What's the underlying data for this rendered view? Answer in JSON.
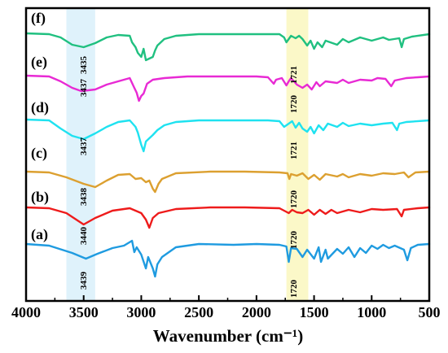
{
  "chart_data": {
    "type": "line",
    "title": "",
    "xlabel": "Wavenumber (cm⁻¹)",
    "ylabel": "",
    "xlim": [
      4000,
      500
    ],
    "x_reversed": true,
    "xticks": [
      4000,
      3500,
      3000,
      2500,
      2000,
      1500,
      1000,
      500
    ],
    "grid": false,
    "legend": "none",
    "highlight_bands": [
      {
        "from": 3650,
        "to": 3400,
        "color": "#dff2fb"
      },
      {
        "from": 1740,
        "to": 1550,
        "color": "#fbf8c8"
      }
    ],
    "series": [
      {
        "name": "(a)",
        "color": "#1f9be0",
        "offset": 0,
        "points": [
          [
            4000,
            300
          ],
          [
            3800,
            302
          ],
          [
            3600,
            311
          ],
          [
            3480,
            318
          ],
          [
            3380,
            312
          ],
          [
            3250,
            305
          ],
          [
            3150,
            302
          ],
          [
            3080,
            296
          ],
          [
            3060,
            310
          ],
          [
            3040,
            304
          ],
          [
            3000,
            313
          ],
          [
            2960,
            330
          ],
          [
            2940,
            316
          ],
          [
            2900,
            330
          ],
          [
            2880,
            340
          ],
          [
            2860,
            325
          ],
          [
            2820,
            316
          ],
          [
            2700,
            304
          ],
          [
            2500,
            300
          ],
          [
            2200,
            301
          ],
          [
            2000,
            300
          ],
          [
            1800,
            301
          ],
          [
            1740,
            303
          ],
          [
            1720,
            322
          ],
          [
            1700,
            305
          ],
          [
            1650,
            306
          ],
          [
            1600,
            316
          ],
          [
            1560,
            307
          ],
          [
            1500,
            318
          ],
          [
            1460,
            304
          ],
          [
            1440,
            322
          ],
          [
            1400,
            307
          ],
          [
            1380,
            318
          ],
          [
            1300,
            306
          ],
          [
            1250,
            312
          ],
          [
            1200,
            304
          ],
          [
            1150,
            316
          ],
          [
            1100,
            305
          ],
          [
            1050,
            311
          ],
          [
            1000,
            302
          ],
          [
            950,
            306
          ],
          [
            900,
            301
          ],
          [
            850,
            305
          ],
          [
            800,
            302
          ],
          [
            720,
            307
          ],
          [
            690,
            320
          ],
          [
            660,
            305
          ],
          [
            600,
            301
          ],
          [
            500,
            300
          ]
        ]
      },
      {
        "name": "(b)",
        "color": "#ee1b1b",
        "offset": 0,
        "points": [
          [
            4000,
            255
          ],
          [
            3800,
            256
          ],
          [
            3650,
            262
          ],
          [
            3500,
            276
          ],
          [
            3400,
            268
          ],
          [
            3250,
            259
          ],
          [
            3100,
            256
          ],
          [
            3000,
            262
          ],
          [
            2960,
            270
          ],
          [
            2930,
            280
          ],
          [
            2900,
            268
          ],
          [
            2850,
            262
          ],
          [
            2700,
            257
          ],
          [
            2400,
            255
          ],
          [
            2100,
            255
          ],
          [
            1800,
            256
          ],
          [
            1720,
            262
          ],
          [
            1690,
            258
          ],
          [
            1650,
            261
          ],
          [
            1600,
            262
          ],
          [
            1550,
            258
          ],
          [
            1500,
            264
          ],
          [
            1450,
            258
          ],
          [
            1400,
            263
          ],
          [
            1350,
            258
          ],
          [
            1300,
            262
          ],
          [
            1200,
            258
          ],
          [
            1100,
            261
          ],
          [
            1000,
            257
          ],
          [
            900,
            258
          ],
          [
            780,
            257
          ],
          [
            740,
            266
          ],
          [
            720,
            258
          ],
          [
            600,
            256
          ],
          [
            500,
            255
          ]
        ]
      },
      {
        "name": "(c)",
        "color": "#dca030",
        "offset": 0,
        "points": [
          [
            4000,
            211
          ],
          [
            3800,
            212
          ],
          [
            3650,
            218
          ],
          [
            3500,
            226
          ],
          [
            3400,
            230
          ],
          [
            3300,
            222
          ],
          [
            3200,
            215
          ],
          [
            3100,
            214
          ],
          [
            3050,
            220
          ],
          [
            3000,
            219
          ],
          [
            2960,
            224
          ],
          [
            2930,
            222
          ],
          [
            2900,
            232
          ],
          [
            2880,
            236
          ],
          [
            2850,
            226
          ],
          [
            2820,
            220
          ],
          [
            2700,
            213
          ],
          [
            2400,
            211
          ],
          [
            2100,
            211
          ],
          [
            1800,
            212
          ],
          [
            1730,
            213
          ],
          [
            1715,
            220
          ],
          [
            1700,
            214
          ],
          [
            1650,
            216
          ],
          [
            1600,
            213
          ],
          [
            1550,
            220
          ],
          [
            1500,
            215
          ],
          [
            1450,
            221
          ],
          [
            1400,
            214
          ],
          [
            1300,
            217
          ],
          [
            1250,
            214
          ],
          [
            1200,
            218
          ],
          [
            1100,
            214
          ],
          [
            1000,
            216
          ],
          [
            900,
            213
          ],
          [
            800,
            214
          ],
          [
            720,
            212
          ],
          [
            680,
            218
          ],
          [
            620,
            212
          ],
          [
            500,
            211
          ]
        ]
      },
      {
        "name": "(d)",
        "color": "#1fe2f0",
        "offset": 0,
        "points": [
          [
            4000,
            147
          ],
          [
            3800,
            148
          ],
          [
            3700,
            158
          ],
          [
            3600,
            167
          ],
          [
            3500,
            171
          ],
          [
            3400,
            164
          ],
          [
            3300,
            156
          ],
          [
            3200,
            150
          ],
          [
            3100,
            148
          ],
          [
            3050,
            156
          ],
          [
            3030,
            163
          ],
          [
            3000,
            178
          ],
          [
            2980,
            186
          ],
          [
            2960,
            174
          ],
          [
            2930,
            170
          ],
          [
            2900,
            166
          ],
          [
            2860,
            160
          ],
          [
            2800,
            154
          ],
          [
            2700,
            150
          ],
          [
            2500,
            148
          ],
          [
            2200,
            148
          ],
          [
            1900,
            148
          ],
          [
            1800,
            149
          ],
          [
            1760,
            156
          ],
          [
            1720,
            152
          ],
          [
            1690,
            149
          ],
          [
            1660,
            157
          ],
          [
            1630,
            151
          ],
          [
            1600,
            158
          ],
          [
            1560,
            162
          ],
          [
            1530,
            156
          ],
          [
            1500,
            164
          ],
          [
            1460,
            154
          ],
          [
            1420,
            160
          ],
          [
            1380,
            152
          ],
          [
            1300,
            156
          ],
          [
            1250,
            151
          ],
          [
            1200,
            155
          ],
          [
            1100,
            152
          ],
          [
            1000,
            154
          ],
          [
            900,
            152
          ],
          [
            820,
            151
          ],
          [
            780,
            160
          ],
          [
            760,
            152
          ],
          [
            700,
            150
          ],
          [
            500,
            148
          ]
        ]
      },
      {
        "name": "(e)",
        "color": "#e82ad4",
        "offset": 0,
        "points": [
          [
            4000,
            93
          ],
          [
            3800,
            94
          ],
          [
            3700,
            100
          ],
          [
            3600,
            108
          ],
          [
            3520,
            112
          ],
          [
            3400,
            110
          ],
          [
            3300,
            104
          ],
          [
            3200,
            100
          ],
          [
            3100,
            96
          ],
          [
            3060,
            108
          ],
          [
            3040,
            114
          ],
          [
            3020,
            124
          ],
          [
            3000,
            118
          ],
          [
            2980,
            115
          ],
          [
            2950,
            103
          ],
          [
            2900,
            98
          ],
          [
            2800,
            96
          ],
          [
            2600,
            94
          ],
          [
            2300,
            94
          ],
          [
            2000,
            94
          ],
          [
            1900,
            95
          ],
          [
            1850,
            103
          ],
          [
            1830,
            98
          ],
          [
            1780,
            96
          ],
          [
            1740,
            105
          ],
          [
            1720,
            100
          ],
          [
            1700,
            96
          ],
          [
            1650,
            104
          ],
          [
            1600,
            108
          ],
          [
            1560,
            104
          ],
          [
            1520,
            110
          ],
          [
            1480,
            101
          ],
          [
            1450,
            106
          ],
          [
            1400,
            100
          ],
          [
            1300,
            102
          ],
          [
            1250,
            98
          ],
          [
            1200,
            102
          ],
          [
            1100,
            98
          ],
          [
            1000,
            99
          ],
          [
            950,
            96
          ],
          [
            880,
            97
          ],
          [
            830,
            106
          ],
          [
            800,
            99
          ],
          [
            700,
            96
          ],
          [
            600,
            95
          ],
          [
            500,
            94
          ]
        ]
      },
      {
        "name": "(f)",
        "color": "#20c080",
        "offset": 0,
        "points": [
          [
            4000,
            41
          ],
          [
            3800,
            42
          ],
          [
            3700,
            46
          ],
          [
            3600,
            55
          ],
          [
            3500,
            58
          ],
          [
            3400,
            53
          ],
          [
            3300,
            46
          ],
          [
            3200,
            43
          ],
          [
            3100,
            44
          ],
          [
            3080,
            52
          ],
          [
            3050,
            58
          ],
          [
            3030,
            65
          ],
          [
            3000,
            70
          ],
          [
            2980,
            60
          ],
          [
            2960,
            74
          ],
          [
            2930,
            72
          ],
          [
            2900,
            70
          ],
          [
            2880,
            62
          ],
          [
            2860,
            56
          ],
          [
            2800,
            48
          ],
          [
            2700,
            44
          ],
          [
            2500,
            42
          ],
          [
            2200,
            42
          ],
          [
            2000,
            42
          ],
          [
            1900,
            42
          ],
          [
            1800,
            42
          ],
          [
            1760,
            46
          ],
          [
            1740,
            52
          ],
          [
            1720,
            48
          ],
          [
            1700,
            44
          ],
          [
            1660,
            47
          ],
          [
            1630,
            44
          ],
          [
            1600,
            48
          ],
          [
            1560,
            56
          ],
          [
            1530,
            50
          ],
          [
            1500,
            60
          ],
          [
            1470,
            52
          ],
          [
            1430,
            58
          ],
          [
            1400,
            50
          ],
          [
            1300,
            55
          ],
          [
            1250,
            48
          ],
          [
            1200,
            52
          ],
          [
            1100,
            46
          ],
          [
            1000,
            50
          ],
          [
            900,
            46
          ],
          [
            850,
            49
          ],
          [
            760,
            47
          ],
          [
            740,
            58
          ],
          [
            720,
            48
          ],
          [
            650,
            45
          ],
          [
            500,
            42
          ]
        ]
      }
    ],
    "curve_labels": [
      "(a)",
      "(b)",
      "(c)",
      "(d)",
      "(e)",
      "(f)"
    ],
    "annotations": [
      {
        "text": "3439",
        "x": 3430
      },
      {
        "text": "1720",
        "x": 1640
      },
      {
        "text": "3440",
        "x": 3430
      },
      {
        "text": "1720",
        "x": 1640
      },
      {
        "text": "3438",
        "x": 3430
      },
      {
        "text": "1720",
        "x": 1640
      },
      {
        "text": "3437",
        "x": 3430
      },
      {
        "text": "1721",
        "x": 1640
      },
      {
        "text": "3437",
        "x": 3430
      },
      {
        "text": "1720",
        "x": 1640
      },
      {
        "text": "3435",
        "x": 3430
      },
      {
        "text": "1721",
        "x": 1640
      }
    ]
  }
}
